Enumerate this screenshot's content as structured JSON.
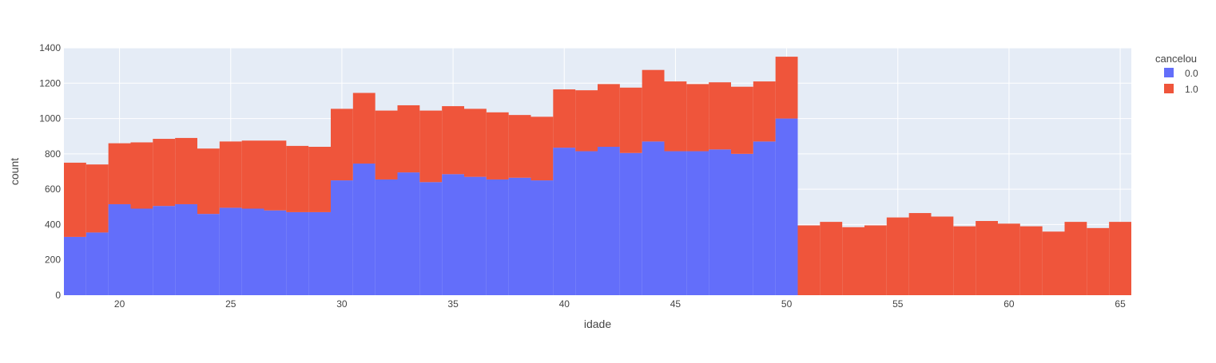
{
  "chart_data": {
    "type": "bar",
    "barmode": "stack",
    "xlabel": "idade",
    "ylabel": "count",
    "xlim": [
      17.5,
      65.5
    ],
    "ylim": [
      0,
      1400
    ],
    "x_ticks": [
      20,
      25,
      30,
      35,
      40,
      45,
      50,
      55,
      60,
      65
    ],
    "y_ticks": [
      0,
      200,
      400,
      600,
      800,
      1000,
      1200,
      1400
    ],
    "grid": true,
    "legend": {
      "title": "cancelou",
      "position": "top-right"
    },
    "x": [
      18,
      19,
      20,
      21,
      22,
      23,
      24,
      25,
      26,
      27,
      28,
      29,
      30,
      31,
      32,
      33,
      34,
      35,
      36,
      37,
      38,
      39,
      40,
      41,
      42,
      43,
      44,
      45,
      46,
      47,
      48,
      49,
      50,
      51,
      52,
      53,
      54,
      55,
      56,
      57,
      58,
      59,
      60,
      61,
      62,
      63,
      64,
      65
    ],
    "series": [
      {
        "name": "0.0",
        "color": "#636efa",
        "values": [
          330,
          355,
          515,
          490,
          505,
          515,
          460,
          495,
          490,
          480,
          470,
          470,
          650,
          745,
          655,
          695,
          640,
          685,
          670,
          655,
          665,
          650,
          835,
          815,
          840,
          805,
          870,
          815,
          815,
          825,
          800,
          870,
          1000,
          0,
          0,
          0,
          0,
          0,
          0,
          0,
          0,
          0,
          0,
          0,
          0,
          0,
          0,
          0
        ]
      },
      {
        "name": "1.0",
        "color": "#ef553b",
        "values": [
          420,
          385,
          345,
          375,
          380,
          375,
          370,
          375,
          385,
          395,
          375,
          370,
          405,
          400,
          390,
          380,
          405,
          385,
          385,
          380,
          355,
          360,
          330,
          345,
          355,
          370,
          405,
          395,
          380,
          380,
          380,
          340,
          350,
          395,
          415,
          385,
          395,
          440,
          465,
          445,
          390,
          420,
          405,
          390,
          360,
          415,
          380,
          415
        ]
      }
    ]
  }
}
